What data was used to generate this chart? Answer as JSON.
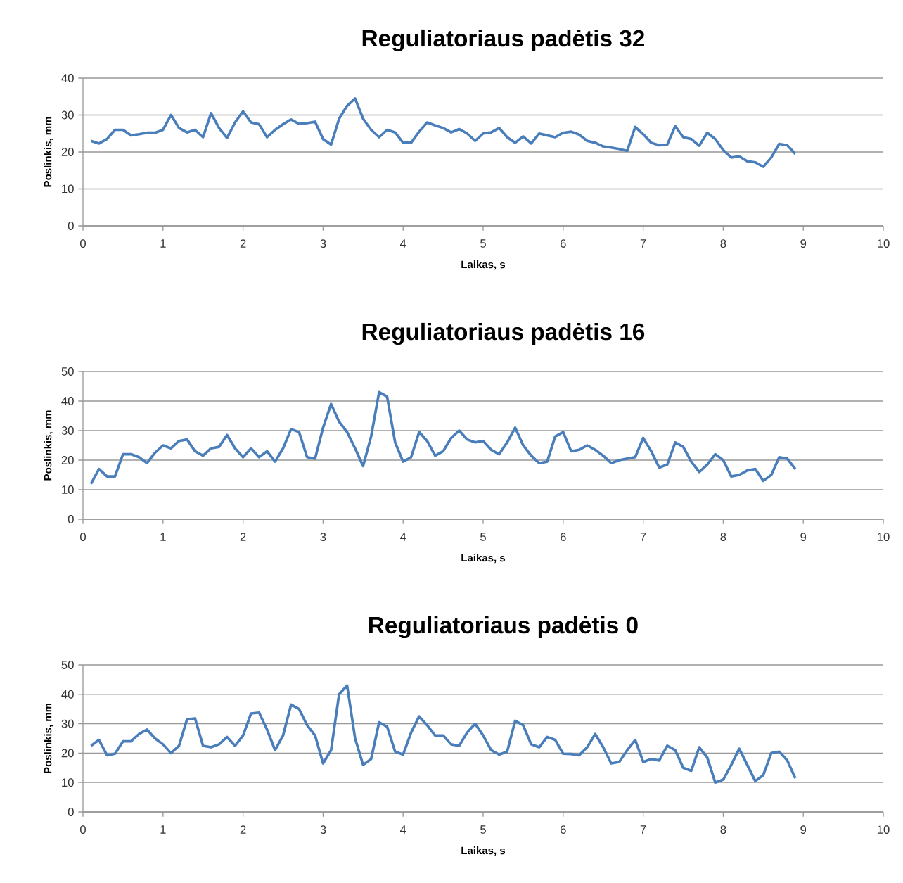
{
  "chart_data": [
    {
      "type": "line",
      "title": "Reguliatoriaus padėtis 32",
      "xlabel": "Laikas,  s",
      "ylabel": "Poslinkis,  mm",
      "color": "#4a7ebb",
      "grid": "y",
      "x": [
        0.1,
        0.2,
        0.3,
        0.4,
        0.5,
        0.6,
        0.7,
        0.8,
        0.9,
        1.0,
        1.1,
        1.2,
        1.3,
        1.4,
        1.5,
        1.6,
        1.7,
        1.8,
        1.9,
        2.0,
        2.1,
        2.2,
        2.3,
        2.4,
        2.5,
        2.6,
        2.7,
        2.8,
        2.9,
        3.0,
        3.1,
        3.2,
        3.3,
        3.4,
        3.5,
        3.6,
        3.7,
        3.8,
        3.9,
        4.0,
        4.1,
        4.2,
        4.3,
        4.4,
        4.5,
        4.6,
        4.7,
        4.8,
        4.9,
        5.0,
        5.1,
        5.2,
        5.3,
        5.4,
        5.5,
        5.6,
        5.7,
        5.8,
        5.9,
        6.0,
        6.1,
        6.2,
        6.3,
        6.4,
        6.5,
        6.6,
        6.7,
        6.8,
        6.9,
        7.0,
        7.1,
        7.2,
        7.3,
        7.4,
        7.5,
        7.6,
        7.7,
        7.8,
        7.9,
        8.0,
        8.1,
        8.2,
        8.3,
        8.4,
        8.5,
        8.6,
        8.7,
        8.8,
        8.9
      ],
      "values": [
        23,
        22.3,
        23.5,
        26,
        26,
        24.5,
        24.8,
        25.2,
        25.2,
        26,
        30,
        26.5,
        25.3,
        26,
        24,
        30.5,
        26.5,
        23.8,
        28,
        31,
        28,
        27.5,
        24,
        26,
        27.5,
        28.8,
        27.6,
        27.8,
        28.2,
        23.5,
        22,
        29,
        32.5,
        34.5,
        29,
        26,
        24,
        26,
        25.3,
        22.5,
        22.5,
        25.5,
        28,
        27.2,
        26.5,
        25.3,
        26.2,
        25,
        23,
        25,
        25.3,
        26.5,
        24,
        22.5,
        24.2,
        22.3,
        25,
        24.5,
        24,
        25.2,
        25.5,
        24.7,
        23,
        22.5,
        21.5,
        21.2,
        20.8,
        20.3,
        26.8,
        24.8,
        22.5,
        21.8,
        22,
        27,
        24,
        23.5,
        21.7,
        25.2,
        23.5,
        20.5,
        18.5,
        18.8,
        17.5,
        17.2,
        16,
        18.5,
        22.2,
        21.8,
        19.5
      ],
      "xlim": [
        0,
        10
      ],
      "xticks": [
        0,
        1,
        2,
        3,
        4,
        5,
        6,
        7,
        8,
        9,
        10
      ],
      "ylim": [
        0,
        40
      ],
      "yticks": [
        0,
        10,
        20,
        30,
        40
      ]
    },
    {
      "type": "line",
      "title": "Reguliatoriaus padėtis 16",
      "xlabel": "Laikas,  s",
      "ylabel": "Poslinkis,  mm",
      "color": "#4a7ebb",
      "grid": "y",
      "x": [
        0.1,
        0.2,
        0.3,
        0.4,
        0.5,
        0.6,
        0.7,
        0.8,
        0.9,
        1.0,
        1.1,
        1.2,
        1.3,
        1.4,
        1.5,
        1.6,
        1.7,
        1.8,
        1.9,
        2.0,
        2.1,
        2.2,
        2.3,
        2.4,
        2.5,
        2.6,
        2.7,
        2.8,
        2.9,
        3.0,
        3.1,
        3.2,
        3.3,
        3.4,
        3.5,
        3.6,
        3.7,
        3.8,
        3.9,
        4.0,
        4.1,
        4.2,
        4.3,
        4.4,
        4.5,
        4.6,
        4.7,
        4.8,
        4.9,
        5.0,
        5.1,
        5.2,
        5.3,
        5.4,
        5.5,
        5.6,
        5.7,
        5.8,
        5.9,
        6.0,
        6.1,
        6.2,
        6.3,
        6.4,
        6.5,
        6.6,
        6.7,
        6.8,
        6.9,
        7.0,
        7.1,
        7.2,
        7.3,
        7.4,
        7.5,
        7.6,
        7.7,
        7.8,
        7.9,
        8.0,
        8.1,
        8.2,
        8.3,
        8.4,
        8.5,
        8.6,
        8.7,
        8.8,
        8.9
      ],
      "values": [
        12,
        17,
        14.5,
        14.5,
        22,
        22,
        21,
        19,
        22.5,
        25,
        24,
        26.5,
        27,
        23,
        21.5,
        24,
        24.5,
        28.5,
        24,
        21,
        24,
        21,
        23,
        19.5,
        24,
        30.5,
        29.5,
        21,
        20.5,
        31,
        39,
        33,
        29.5,
        24,
        18,
        28,
        43,
        41.5,
        26,
        19.5,
        21,
        29.5,
        26.5,
        21.5,
        23,
        27.5,
        30,
        27,
        26,
        26.5,
        23.5,
        22,
        26,
        31,
        25,
        21.5,
        19,
        19.5,
        28,
        29.5,
        23,
        23.5,
        25,
        23.5,
        21.5,
        19,
        20,
        20.5,
        21,
        27.5,
        23,
        17.5,
        18.5,
        26,
        24.5,
        19.5,
        16,
        18.5,
        22,
        20,
        14.5,
        15,
        16.5,
        17,
        13,
        15,
        21,
        20.5,
        17
      ],
      "xlim": [
        0,
        10
      ],
      "xticks": [
        0,
        1,
        2,
        3,
        4,
        5,
        6,
        7,
        8,
        9,
        10
      ],
      "ylim": [
        0,
        50
      ],
      "yticks": [
        0,
        10,
        20,
        30,
        40,
        50
      ]
    },
    {
      "type": "line",
      "title": "Reguliatoriaus padėtis 0",
      "xlabel": "Laikas,  s",
      "ylabel": "Poslinkis,  mm",
      "color": "#4a7ebb",
      "grid": "y",
      "x": [
        0.1,
        0.2,
        0.3,
        0.4,
        0.5,
        0.6,
        0.7,
        0.8,
        0.9,
        1.0,
        1.1,
        1.2,
        1.3,
        1.4,
        1.5,
        1.6,
        1.7,
        1.8,
        1.9,
        2.0,
        2.1,
        2.2,
        2.3,
        2.4,
        2.5,
        2.6,
        2.7,
        2.8,
        2.9,
        3.0,
        3.1,
        3.2,
        3.3,
        3.4,
        3.5,
        3.6,
        3.7,
        3.8,
        3.9,
        4.0,
        4.1,
        4.2,
        4.3,
        4.4,
        4.5,
        4.6,
        4.7,
        4.8,
        4.9,
        5.0,
        5.1,
        5.2,
        5.3,
        5.4,
        5.5,
        5.6,
        5.7,
        5.8,
        5.9,
        6.0,
        6.1,
        6.2,
        6.3,
        6.4,
        6.5,
        6.6,
        6.7,
        6.8,
        6.9,
        7.0,
        7.1,
        7.2,
        7.3,
        7.4,
        7.5,
        7.6,
        7.7,
        7.8,
        7.9,
        8.0,
        8.1,
        8.2,
        8.3,
        8.4,
        8.5,
        8.6,
        8.7,
        8.8,
        8.9
      ],
      "values": [
        22.5,
        24.5,
        19.3,
        19.8,
        24,
        24,
        26.5,
        28,
        25,
        23,
        20,
        22.5,
        31.5,
        31.8,
        22.5,
        22,
        23,
        25.5,
        22.5,
        26,
        33.5,
        33.8,
        28,
        21,
        26,
        36.5,
        35,
        29.5,
        26,
        16.5,
        21,
        40,
        43,
        25,
        16,
        18,
        30.5,
        29,
        20.5,
        19.5,
        27,
        32.5,
        29.5,
        26,
        26,
        23,
        22.5,
        27,
        30,
        26,
        21,
        19.5,
        20.5,
        31,
        29.5,
        23,
        22,
        25.5,
        24.5,
        19.8,
        19.7,
        19.3,
        22,
        26.5,
        22,
        16.5,
        17,
        21,
        24.5,
        17,
        18,
        17.5,
        22.5,
        21,
        15,
        14,
        22,
        18.5,
        10,
        11,
        16,
        21.5,
        16,
        10.5,
        12.5,
        20,
        20.5,
        17.5,
        11.5
      ],
      "xlim": [
        0,
        10
      ],
      "xticks": [
        0,
        1,
        2,
        3,
        4,
        5,
        6,
        7,
        8,
        9,
        10
      ],
      "ylim": [
        0,
        50
      ],
      "yticks": [
        0,
        10,
        20,
        30,
        40,
        50
      ]
    }
  ]
}
